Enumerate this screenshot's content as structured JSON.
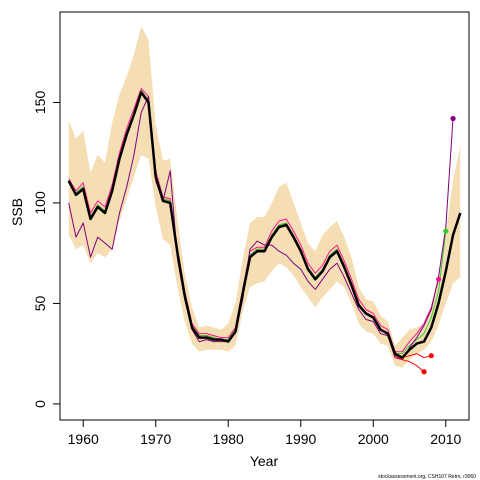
{
  "chart_data": {
    "type": "line",
    "title": "",
    "xlabel": "Year",
    "ylabel": "SSB",
    "xlim": [
      1956.8,
      2013.2
    ],
    "ylim": [
      -8,
      195
    ],
    "xticks": [
      1960,
      1970,
      1980,
      1990,
      2000,
      2010
    ],
    "yticks": [
      0,
      50,
      100,
      150
    ],
    "grid": false,
    "legend": "none",
    "credit": "stockassessment.org, CSH107 Retro, r3060",
    "colors": {
      "band": "#f5deb3",
      "final": "#000000",
      "retro": [
        "#ff0000",
        "#ff1493",
        "#32cd32",
        "#800080"
      ]
    },
    "band": {
      "x": [
        1958,
        1959,
        1960,
        1961,
        1962,
        1963,
        1964,
        1965,
        1966,
        1967,
        1968,
        1969,
        1970,
        1971,
        1972,
        1973,
        1974,
        1975,
        1976,
        1977,
        1978,
        1979,
        1980,
        1981,
        1982,
        1983,
        1984,
        1985,
        1986,
        1987,
        1988,
        1989,
        1990,
        1991,
        1992,
        1993,
        1994,
        1995,
        1996,
        1997,
        1998,
        1999,
        2000,
        2001,
        2002,
        2003,
        2004,
        2005,
        2006,
        2007,
        2008,
        2009,
        2010,
        2011,
        2012
      ],
      "upper": [
        141,
        132,
        136,
        115,
        124,
        120,
        140,
        154,
        163,
        174,
        188,
        181,
        139,
        121,
        122,
        91,
        65,
        48,
        38,
        39,
        38,
        37,
        40,
        50,
        72,
        90,
        93,
        93,
        100,
        108,
        110,
        100,
        90,
        80,
        76,
        84,
        88,
        91,
        83,
        73,
        58,
        52,
        51,
        44,
        41,
        29,
        33,
        37,
        38,
        40,
        49,
        64,
        85,
        111,
        129
      ],
      "lower": [
        84,
        77,
        79,
        70,
        75,
        73,
        77,
        91,
        102,
        113,
        124,
        122,
        98,
        82,
        79,
        58,
        41,
        30,
        26,
        27,
        27,
        27,
        26,
        29,
        46,
        58,
        60,
        61,
        66,
        70,
        68,
        64,
        58,
        53,
        48,
        53,
        57,
        61,
        58,
        50,
        40,
        36,
        35,
        30,
        29,
        19,
        18,
        22,
        25,
        27,
        31,
        39,
        50,
        60,
        63
      ]
    },
    "series": [
      {
        "name": "",
        "role": "final",
        "x": [
          1958,
          1959,
          1960,
          1961,
          1962,
          1963,
          1964,
          1965,
          1966,
          1967,
          1968,
          1969,
          1970,
          1971,
          1972,
          1973,
          1974,
          1975,
          1976,
          1977,
          1978,
          1979,
          1980,
          1981,
          1982,
          1983,
          1984,
          1985,
          1986,
          1987,
          1988,
          1989,
          1990,
          1991,
          1992,
          1993,
          1994,
          1995,
          1996,
          1997,
          1998,
          1999,
          2000,
          2001,
          2002,
          2003,
          2004,
          2005,
          2006,
          2007,
          2008,
          2009,
          2010,
          2011,
          2012
        ],
        "y": [
          111,
          104,
          107,
          92,
          98,
          95,
          106,
          122,
          134,
          144,
          155,
          150,
          113,
          101,
          100,
          75,
          54,
          38,
          33,
          33,
          32,
          32,
          31,
          36,
          55,
          73,
          76,
          76,
          83,
          88,
          89,
          83,
          76,
          67,
          62,
          66,
          73,
          76,
          68,
          59,
          49,
          45,
          43,
          37,
          35,
          25,
          23,
          27,
          30,
          31,
          38,
          50,
          66,
          84,
          95
        ]
      },
      {
        "name": "",
        "role": "retro",
        "x": [
          1958,
          1959,
          1960,
          1961,
          1962,
          1963,
          1964,
          1965,
          1966,
          1967,
          1968,
          1969,
          1970,
          1971,
          1972,
          1973,
          1974,
          1975,
          1976,
          1977,
          1978,
          1979,
          1980,
          1981,
          1982,
          1983,
          1984,
          1985,
          1986,
          1987,
          1988,
          1989,
          1990,
          1991,
          1992,
          1993,
          1994,
          1995,
          1996,
          1997,
          1998,
          1999,
          2000,
          2001,
          2002,
          2003,
          2004,
          2005,
          2006,
          2007,
          2008
        ],
        "y": [
          110,
          105,
          108,
          93,
          99,
          96,
          107,
          123,
          135,
          145,
          156,
          151,
          114,
          102,
          101,
          76,
          55,
          39,
          34,
          34,
          33,
          32,
          32,
          37,
          56,
          74,
          77,
          77,
          84,
          89,
          90,
          84,
          77,
          68,
          63,
          67,
          74,
          77,
          69,
          60,
          50,
          45,
          43,
          37,
          35,
          24,
          23,
          24,
          25,
          23,
          24
        ]
      },
      {
        "name": "",
        "role": "retro",
        "x": [
          1958,
          1959,
          1960,
          1961,
          1962,
          1963,
          1964,
          1965,
          1966,
          1967,
          1968,
          1969,
          1970,
          1971,
          1972,
          1973,
          1974,
          1975,
          1976,
          1977,
          1978,
          1979,
          1980,
          1981,
          1982,
          1983,
          1984,
          1985,
          1986,
          1987,
          1988,
          1989,
          1990,
          1991,
          1992,
          1993,
          1994,
          1995,
          1996,
          1997,
          1998,
          1999,
          2000,
          2001,
          2002,
          2003,
          2004,
          2005,
          2006,
          2007,
          2008,
          2009
        ],
        "y": [
          112,
          106,
          110,
          95,
          101,
          98,
          109,
          125,
          137,
          147,
          157,
          153,
          116,
          103,
          102,
          77,
          56,
          40,
          35,
          35,
          34,
          33,
          33,
          38,
          57,
          76,
          78,
          78,
          86,
          91,
          92,
          86,
          79,
          70,
          65,
          69,
          76,
          79,
          71,
          62,
          52,
          47,
          45,
          39,
          37,
          26,
          26,
          31,
          35,
          40,
          48,
          62
        ]
      },
      {
        "name": "",
        "role": "retro",
        "x": [
          1958,
          1959,
          1960,
          1961,
          1962,
          1963,
          1964,
          1965,
          1966,
          1967,
          1968,
          1969,
          1970,
          1971,
          1972,
          1973,
          1974,
          1975,
          1976,
          1977,
          1978,
          1979,
          1980,
          1981,
          1982,
          1983,
          1984,
          1985,
          1986,
          1987,
          1988,
          1989,
          1990,
          1991,
          1992,
          1993,
          1994,
          1995,
          1996,
          1997,
          1998,
          1999,
          2000,
          2001,
          2002,
          2003,
          2004,
          2005,
          2006,
          2007,
          2008,
          2009,
          2010
        ],
        "y": [
          111,
          105,
          108,
          93,
          99,
          96,
          107,
          123,
          135,
          145,
          156,
          151,
          114,
          102,
          101,
          76,
          55,
          39,
          34,
          34,
          33,
          32,
          32,
          37,
          56,
          74,
          77,
          77,
          84,
          89,
          90,
          84,
          77,
          68,
          63,
          67,
          74,
          77,
          69,
          60,
          50,
          45,
          43,
          37,
          35,
          25,
          25,
          29,
          32,
          35,
          43,
          56,
          86
        ]
      },
      {
        "name": "",
        "role": "retro",
        "x": [
          1958,
          1959,
          1960,
          1961,
          1962,
          1963,
          1964,
          1965,
          1966,
          1967,
          1968,
          1969,
          1970,
          1971,
          1972,
          1973,
          1974,
          1975,
          1976,
          1977,
          1978,
          1979,
          1980,
          1981,
          1982,
          1983,
          1984,
          1985,
          1986,
          1987,
          1988,
          1989,
          1990,
          1991,
          1992,
          1993,
          1994,
          1995,
          1996,
          1997,
          1998,
          1999,
          2000,
          2001,
          2002,
          2003,
          2004,
          2005,
          2006,
          2007,
          2008,
          2009,
          2010,
          2011
        ],
        "y": [
          100,
          83,
          90,
          73,
          83,
          80,
          77,
          95,
          108,
          124,
          145,
          153,
          111,
          101,
          116,
          72,
          52,
          37,
          31,
          32,
          31,
          31,
          31,
          36,
          52,
          77,
          81,
          79,
          79,
          76,
          74,
          70,
          67,
          61,
          57,
          62,
          67,
          70,
          63,
          55,
          47,
          42,
          41,
          35,
          34,
          23,
          22,
          28,
          33,
          39,
          47,
          63,
          88,
          142
        ]
      },
      {
        "name": "",
        "role": "retro",
        "x": [
          2003,
          2004,
          2005,
          2006,
          2007
        ],
        "y": [
          24,
          22,
          21,
          19,
          16
        ]
      }
    ]
  }
}
